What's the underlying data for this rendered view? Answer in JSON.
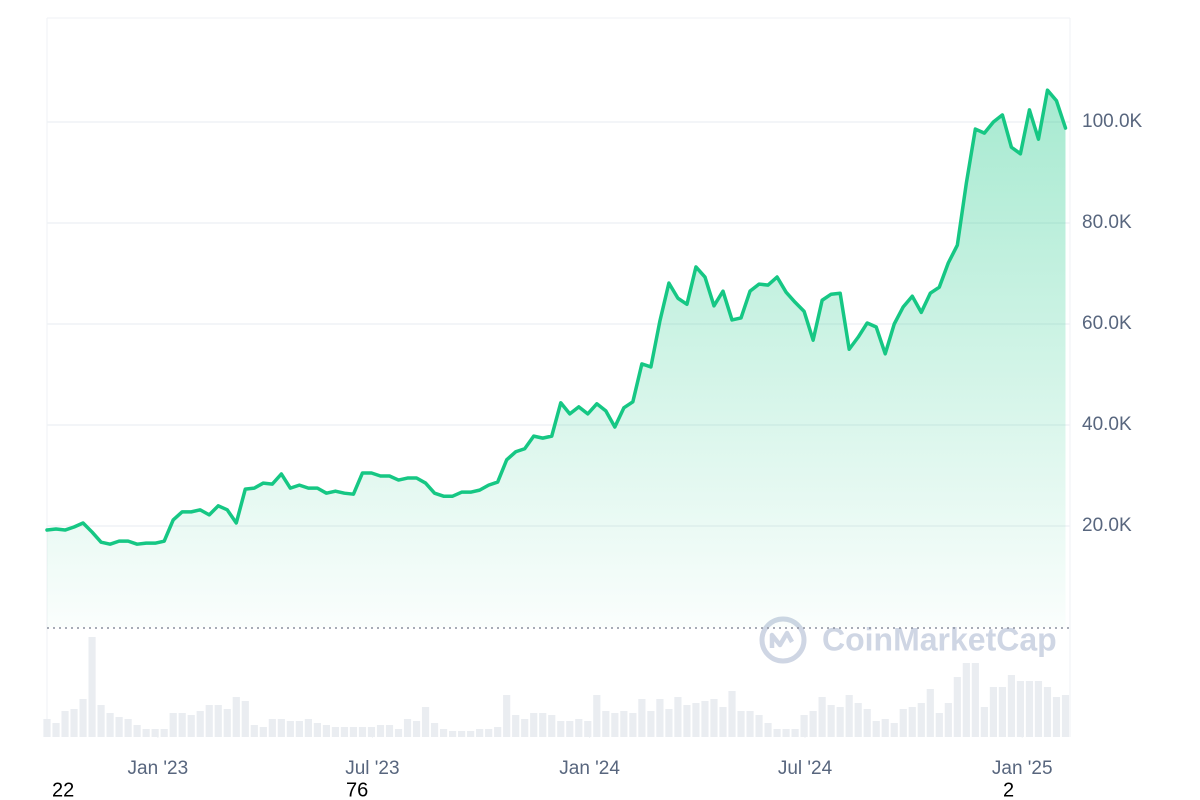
{
  "chart_data": {
    "type": "area",
    "watermark": "CoinMarketCap",
    "color": "#16c784",
    "volume_color": "#eaedf1",
    "grid": true,
    "x": [
      0,
      1,
      2,
      3,
      4,
      5,
      6,
      7,
      8,
      9,
      10,
      11,
      12,
      13,
      14,
      15,
      16,
      17,
      18,
      19,
      20,
      21,
      22,
      23,
      24,
      25,
      26,
      27,
      28,
      29,
      30,
      31,
      32,
      33,
      34,
      35,
      36,
      37,
      38,
      39,
      40,
      41,
      42,
      43,
      44,
      45,
      46,
      47,
      48,
      49,
      50,
      51,
      52,
      53,
      54,
      55,
      56,
      57,
      58,
      59,
      60,
      61,
      62,
      63,
      64,
      65,
      66,
      67,
      68,
      69,
      70,
      71,
      72,
      73,
      74,
      75,
      76,
      77,
      78,
      79,
      80,
      81,
      82,
      83,
      84,
      85,
      86,
      87,
      88,
      89,
      90,
      91,
      92,
      93,
      94,
      95,
      96,
      97,
      98,
      99,
      100,
      101,
      102,
      103,
      104,
      105,
      106,
      107,
      108,
      109,
      110,
      111,
      112,
      113
    ],
    "xlim": [
      0,
      113.5
    ],
    "xticks": [
      {
        "value": 12.3,
        "label": "Jan '23"
      },
      {
        "value": 36.1,
        "label": "Jul '23"
      },
      {
        "value": 60.2,
        "label": "Jan '24"
      },
      {
        "value": 84.1,
        "label": "Jul '24"
      },
      {
        "value": 108.2,
        "label": "Jan '25"
      }
    ],
    "ylim": [
      0,
      120000
    ],
    "yticks": [
      {
        "value": 20000,
        "label": "20.0K"
      },
      {
        "value": 40000,
        "label": "40.0K"
      },
      {
        "value": 60000,
        "label": "60.0K"
      },
      {
        "value": 80000,
        "label": "80.0K"
      },
      {
        "value": 100000,
        "label": "100.0K"
      }
    ],
    "values": [
      19200,
      19400,
      19200,
      19800,
      20600,
      18800,
      16800,
      16400,
      17000,
      17000,
      16400,
      16600,
      16600,
      17000,
      21200,
      22800,
      22800,
      23200,
      22200,
      24000,
      23200,
      20600,
      27300,
      27500,
      28500,
      28300,
      30300,
      27500,
      28100,
      27500,
      27500,
      26500,
      26900,
      26500,
      26300,
      30500,
      30500,
      29900,
      29900,
      29100,
      29500,
      29500,
      28500,
      26500,
      25900,
      25900,
      26700,
      26700,
      27100,
      28100,
      28700,
      33100,
      34700,
      35300,
      37800,
      37400,
      37800,
      44400,
      42200,
      43600,
      42200,
      44200,
      42800,
      39600,
      43400,
      44600,
      52100,
      51500,
      60600,
      68100,
      65100,
      63900,
      71300,
      69300,
      63600,
      66500,
      60800,
      61200,
      66500,
      67900,
      67700,
      69300,
      66300,
      64300,
      62500,
      56800,
      64700,
      65900,
      66100,
      55000,
      57400,
      60200,
      59400,
      54100,
      60000,
      63400,
      65500,
      62300,
      66100,
      67300,
      72100,
      75600,
      87900,
      98600,
      97800,
      100000,
      101400,
      95000,
      93700,
      102400,
      96600,
      106300,
      104200,
      98800
    ],
    "volumes": [
      18,
      14,
      26,
      28,
      38,
      100,
      32,
      24,
      20,
      18,
      12,
      8,
      8,
      8,
      24,
      24,
      22,
      26,
      32,
      32,
      28,
      40,
      36,
      12,
      10,
      18,
      18,
      16,
      16,
      18,
      14,
      12,
      10,
      10,
      10,
      10,
      10,
      12,
      12,
      8,
      18,
      16,
      30,
      14,
      8,
      6,
      6,
      6,
      8,
      8,
      10,
      42,
      22,
      18,
      24,
      24,
      22,
      16,
      16,
      18,
      16,
      42,
      26,
      24,
      26,
      24,
      38,
      26,
      38,
      28,
      40,
      32,
      34,
      36,
      38,
      30,
      46,
      26,
      26,
      22,
      14,
      8,
      8,
      8,
      22,
      26,
      40,
      32,
      30,
      42,
      34,
      28,
      16,
      18,
      14,
      28,
      30,
      34,
      48,
      24,
      34,
      60,
      74,
      74,
      30,
      50,
      50,
      62,
      56,
      56,
      56,
      50,
      40,
      42
    ],
    "volume_ylim": [
      0,
      110
    ],
    "bottom_labels": [
      "22",
      "76",
      "2"
    ]
  }
}
